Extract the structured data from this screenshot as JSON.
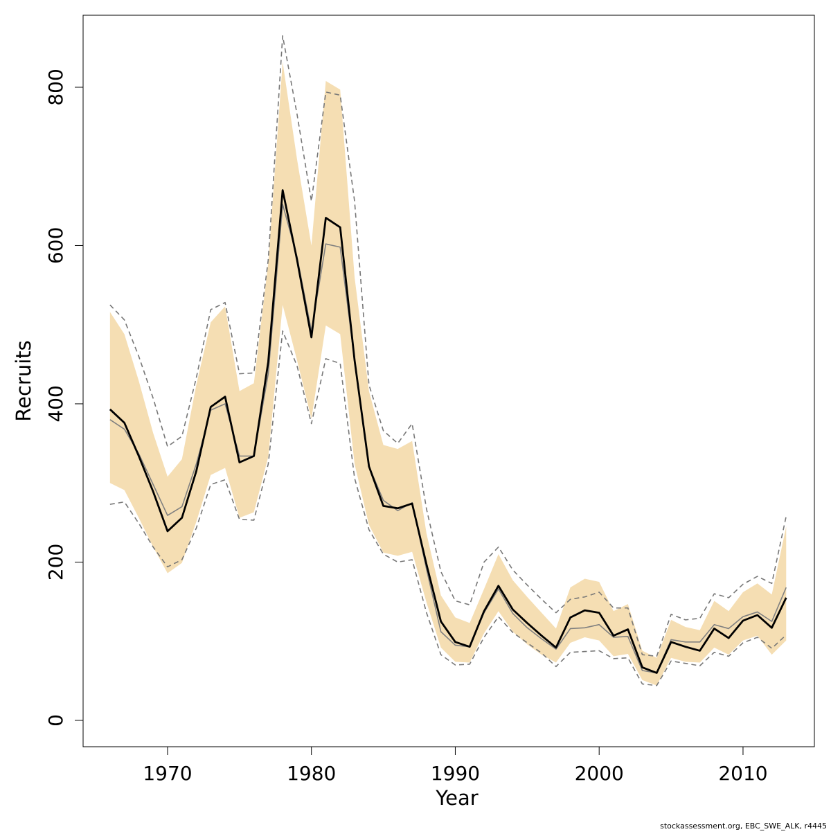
{
  "chart_data": {
    "type": "line",
    "xlabel": "Year",
    "ylabel": "Recruits",
    "credit": "stockassessment.org, EBC_SWE_ALK, r4445",
    "xlim": [
      1964.13,
      2014.96
    ],
    "ylim": [
      -33.3,
      891
    ],
    "xticks": [
      1970,
      1980,
      1990,
      2000,
      2010
    ],
    "yticks": [
      0,
      200,
      400,
      600,
      800
    ],
    "x": [
      1966,
      1967,
      1968,
      1969,
      1970,
      1971,
      1972,
      1973,
      1974,
      1975,
      1976,
      1977,
      1978,
      1979,
      1980,
      1981,
      1982,
      1983,
      1984,
      1985,
      1986,
      1987,
      1988,
      1989,
      1990,
      1991,
      1992,
      1993,
      1994,
      1995,
      1996,
      1997,
      1998,
      1999,
      2000,
      2001,
      2002,
      2003,
      2004,
      2005,
      2006,
      2007,
      2008,
      2009,
      2010,
      2011,
      2012,
      2013
    ],
    "band": {
      "color": "#f5deb3",
      "upper": [
        516,
        488,
        429,
        363,
        308,
        330,
        424,
        503,
        523,
        416,
        426,
        578,
        832,
        709,
        600,
        808,
        797,
        560,
        416,
        348,
        343,
        353,
        236,
        158,
        130,
        123,
        166,
        210,
        177,
        156,
        136,
        116,
        168,
        179,
        175,
        138,
        147,
        88,
        79,
        127,
        118,
        114,
        151,
        138,
        162,
        173,
        159,
        245
      ],
      "lower": [
        300,
        291,
        256,
        219,
        186,
        199,
        251,
        310,
        319,
        256,
        263,
        333,
        525,
        455,
        381,
        499,
        488,
        324,
        247,
        212,
        208,
        213,
        149,
        92,
        74,
        73,
        110,
        138,
        112,
        96,
        83,
        73,
        98,
        105,
        101,
        81,
        84,
        51,
        44,
        79,
        74,
        73,
        92,
        83,
        101,
        107,
        83,
        101
      ]
    },
    "series": [
      {
        "color": "#777777",
        "style": "dashed",
        "width": 1.6,
        "values": [
          525,
          506,
          460,
          407,
          346,
          359,
          433,
          519,
          528,
          438,
          439,
          582,
          865,
          766,
          656,
          794,
          790,
          656,
          424,
          366,
          350,
          375,
          267,
          188,
          151,
          146,
          200,
          219,
          190,
          171,
          153,
          136,
          153,
          156,
          162,
          142,
          142,
          83,
          81,
          134,
          127,
          129,
          160,
          155,
          172,
          182,
          173,
          258
        ]
      },
      {
        "color": "#777777",
        "style": "dashed",
        "width": 1.6,
        "values": [
          273,
          276,
          249,
          219,
          194,
          203,
          243,
          298,
          304,
          254,
          253,
          324,
          492,
          448,
          375,
          457,
          451,
          306,
          241,
          210,
          200,
          203,
          136,
          83,
          70,
          71,
          105,
          131,
          111,
          98,
          85,
          68,
          86,
          87,
          88,
          78,
          79,
          46,
          44,
          75,
          72,
          69,
          86,
          81,
          98,
          105,
          91,
          108
        ]
      },
      {
        "color": "#808080",
        "style": "solid",
        "width": 1.6,
        "values": [
          380,
          368,
          337,
          298,
          259,
          270,
          324,
          392,
          400,
          334,
          334,
          438,
          652,
          586,
          492,
          602,
          598,
          455,
          321,
          278,
          265,
          275,
          191,
          112,
          95,
          93,
          136,
          166,
          135,
          117,
          103,
          90,
          116,
          117,
          121,
          105,
          106,
          63,
          60,
          102,
          99,
          99,
          121,
          116,
          131,
          137,
          125,
          168
        ]
      },
      {
        "color": "#000000",
        "style": "solid",
        "width": 2.8,
        "values": [
          393,
          376,
          334,
          289,
          239,
          256,
          315,
          396,
          409,
          326,
          334,
          453,
          670,
          582,
          484,
          635,
          623,
          455,
          321,
          271,
          268,
          274,
          197,
          125,
          99,
          93,
          138,
          170,
          140,
          123,
          107,
          92,
          130,
          139,
          136,
          107,
          115,
          67,
          60,
          99,
          93,
          88,
          116,
          104,
          126,
          133,
          117,
          155
        ]
      }
    ]
  }
}
